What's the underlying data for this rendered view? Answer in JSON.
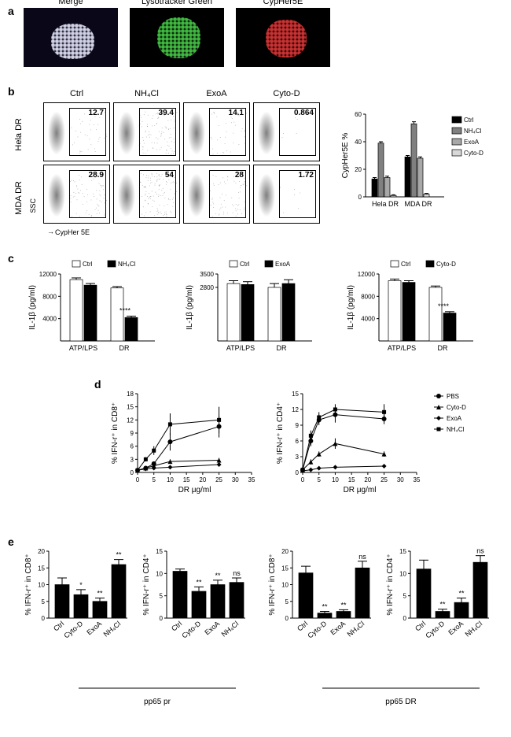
{
  "labels": {
    "a": "a",
    "b": "b",
    "c": "c",
    "d": "d",
    "e": "e"
  },
  "panel_a": {
    "images": [
      {
        "label": "Merge",
        "base_color": "#1a1630",
        "dots": "#e8e8f0"
      },
      {
        "label": "Lysotracker Green",
        "base_color": "#000000",
        "dots": "#3fb83f"
      },
      {
        "label": "CypHer5E",
        "base_color": "#000000",
        "dots": "#c83232"
      }
    ]
  },
  "panel_b": {
    "col_labels": [
      "Ctrl",
      "NH₄Cl",
      "ExoA",
      "Cyto-D"
    ],
    "row_labels": [
      "Hela DR",
      "MDA DR"
    ],
    "pcts": [
      [
        "12.7",
        "39.4",
        "14.1",
        "0.864"
      ],
      [
        "28.9",
        "54",
        "28",
        "1.72"
      ]
    ],
    "spread": [
      [
        0.2,
        0.55,
        0.22,
        0.03
      ],
      [
        0.42,
        0.7,
        0.4,
        0.04
      ]
    ],
    "x_axis": "CypHer 5E",
    "y_axis": "SSC",
    "bar_chart": {
      "ylabel": "CypHer5E %",
      "ylim": [
        0,
        60
      ],
      "ytick_step": 20,
      "groups": [
        "Hela DR",
        "MDA DR"
      ],
      "series": [
        {
          "name": "Ctrl",
          "color": "#000000",
          "values": [
            13,
            29
          ],
          "err": [
            1,
            1
          ]
        },
        {
          "name": "NH₄Cl",
          "color": "#808080",
          "values": [
            39,
            53
          ],
          "err": [
            1,
            1.5
          ]
        },
        {
          "name": "ExoA",
          "color": "#a8a8a8",
          "values": [
            14,
            28
          ],
          "err": [
            1,
            1
          ]
        },
        {
          "name": "Cyto-D",
          "color": "#d8d8d8",
          "values": [
            1,
            2
          ],
          "err": [
            0.5,
            0.5
          ]
        }
      ]
    }
  },
  "panel_c": {
    "ylabel": "IL-1β (pg/ml)",
    "xcats": [
      "ATP/LPS",
      "DR"
    ],
    "charts": [
      {
        "legend": [
          "Ctrl",
          "NH₄Cl"
        ],
        "ylim": [
          0,
          12000
        ],
        "yticks": [
          4000,
          8000,
          12000
        ],
        "ctrl": [
          11000,
          9500
        ],
        "treat": [
          10000,
          4200
        ],
        "err": [
          300,
          250
        ],
        "sig": [
          null,
          "****"
        ]
      },
      {
        "legend": [
          "Ctrl",
          "ExoA"
        ],
        "ylim": [
          0,
          3500
        ],
        "yticks": [
          2800,
          3500
        ],
        "ctrl": [
          3000,
          2800
        ],
        "treat": [
          2950,
          3000
        ],
        "err": [
          150,
          200
        ],
        "sig": [
          null,
          null
        ]
      },
      {
        "legend": [
          "Ctrl",
          "Cyto-D"
        ],
        "ylim": [
          0,
          12000
        ],
        "yticks": [
          4000,
          8000,
          12000
        ],
        "ctrl": [
          10800,
          9600
        ],
        "treat": [
          10500,
          5000
        ],
        "err": [
          300,
          250
        ],
        "sig": [
          null,
          "****"
        ]
      }
    ]
  },
  "panel_d": {
    "xlabel": "DR μg/ml",
    "xticks": [
      0,
      5,
      10,
      15,
      20,
      25,
      30,
      35
    ],
    "charts": [
      {
        "ylabel": "% IFN-r⁺ in CD8⁺",
        "ylim": [
          0,
          18
        ],
        "ytick_step": 3,
        "x": [
          0,
          2.5,
          5,
          10,
          25
        ],
        "series": {
          "PBS": [
            0.5,
            1,
            2,
            7,
            10.5
          ],
          "Cyto-D": [
            0.5,
            1,
            1.5,
            2.5,
            2.8
          ],
          "ExoA": [
            0.5,
            0.8,
            1,
            1.2,
            1.8
          ],
          "NH₄Cl": [
            0.5,
            3,
            5,
            11,
            12
          ]
        },
        "err": {
          "PBS": [
            0.2,
            0.3,
            0.5,
            2,
            2.5
          ],
          "Cyto-D": [
            0.2,
            0.3,
            0.3,
            0.5,
            0.5
          ],
          "ExoA": [
            0.2,
            0.2,
            0.2,
            0.3,
            0.3
          ],
          "NH₄Cl": [
            0.2,
            0.5,
            1,
            2.5,
            3
          ]
        }
      },
      {
        "ylabel": "% IFN-r⁺ in CD4⁺",
        "ylim": [
          0,
          15
        ],
        "ytick_step": 3,
        "x": [
          0,
          2.5,
          5,
          10,
          25
        ],
        "series": {
          "PBS": [
            0.5,
            6,
            10,
            11,
            10.2
          ],
          "Cyto-D": [
            0.5,
            2,
            3.5,
            5.5,
            3.5
          ],
          "ExoA": [
            0.3,
            0.5,
            0.8,
            1,
            1.2
          ],
          "NH₄Cl": [
            0.5,
            7,
            10.5,
            12,
            11.5
          ]
        },
        "err": {
          "PBS": [
            0.2,
            1,
            1,
            1.5,
            1
          ],
          "Cyto-D": [
            0.2,
            0.5,
            0.5,
            1,
            0.5
          ],
          "ExoA": [
            0.1,
            0.2,
            0.2,
            0.2,
            0.3
          ],
          "NH₄Cl": [
            0.2,
            1,
            1,
            1,
            1.5
          ]
        }
      }
    ],
    "legend": [
      "PBS",
      "Cyto-D",
      "ExoA",
      "NH₄Cl"
    ],
    "markers": {
      "PBS": "circle",
      "Cyto-D": "triangle",
      "ExoA": "diamond",
      "NH₄Cl": "square"
    }
  },
  "panel_e": {
    "xcats": [
      "Ctrl",
      "Cyto-D",
      "ExoA",
      "NH₄Cl"
    ],
    "groups": [
      "pp65 pr",
      "pp65 DR"
    ],
    "charts": [
      {
        "ylabel": "% IFN-r⁺ in CD8⁺",
        "ylim": [
          0,
          20
        ],
        "ytick_step": 5,
        "values": [
          10,
          7,
          5,
          16
        ],
        "err": [
          2,
          1.5,
          1,
          1.5
        ],
        "sig": [
          null,
          "*",
          "**",
          "**"
        ]
      },
      {
        "ylabel": "% IFN-r⁺ in CD4⁺",
        "ylim": [
          0,
          15
        ],
        "ytick_step": 5,
        "values": [
          10.5,
          6,
          7.5,
          8
        ],
        "err": [
          0.5,
          1,
          1,
          1
        ],
        "sig": [
          null,
          "**",
          "**",
          "ns"
        ]
      },
      {
        "ylabel": "% IFN-r⁺ in CD8⁺",
        "ylim": [
          0,
          20
        ],
        "ytick_step": 5,
        "values": [
          13.5,
          1.5,
          2,
          15
        ],
        "err": [
          2,
          0.5,
          0.5,
          2
        ],
        "sig": [
          null,
          "**",
          "**",
          "ns"
        ]
      },
      {
        "ylabel": "% IFN-r⁺ in CD4⁺",
        "ylim": [
          0,
          15
        ],
        "ytick_step": 5,
        "values": [
          11,
          1.5,
          3.5,
          12.5
        ],
        "err": [
          2,
          0.5,
          1,
          1.5
        ],
        "sig": [
          null,
          "**",
          "**",
          "ns"
        ]
      }
    ]
  },
  "colors": {
    "black": "#000000",
    "white": "#ffffff"
  }
}
